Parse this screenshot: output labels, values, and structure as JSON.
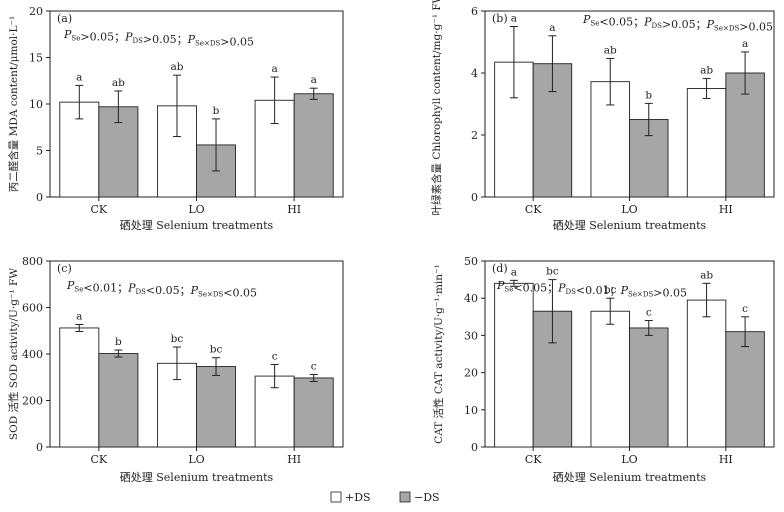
{
  "legend": {
    "items": [
      {
        "label": "+DS",
        "color": "#ffffff"
      },
      {
        "label": "−DS",
        "color": "#a6a6a6"
      }
    ]
  },
  "chart_data": [
    {
      "type": "bar",
      "panel_label": "(a)",
      "stats": "PSe>0.05；PDS>0.05；PSe×DS>0.05",
      "ylabel": "丙二醛含量 MDA content/μmol·L⁻¹",
      "xlabel": "硒处理 Selenium treatments",
      "categories": [
        "CK",
        "LO",
        "HI"
      ],
      "ylim": [
        0,
        20
      ],
      "yticks": [
        0,
        5,
        10,
        15,
        20
      ],
      "series": [
        {
          "name": "+DS",
          "values": [
            10.2,
            9.8,
            10.4
          ],
          "errors": [
            1.8,
            3.3,
            2.5
          ],
          "letters": [
            "a",
            "ab",
            "a"
          ]
        },
        {
          "name": "−DS",
          "values": [
            9.7,
            5.6,
            11.1
          ],
          "errors": [
            1.7,
            2.8,
            0.6
          ],
          "letters": [
            "ab",
            "b",
            "a"
          ]
        }
      ]
    },
    {
      "type": "bar",
      "panel_label": "(b)",
      "stats": "PSe<0.05；PDS>0.05；PSe×DS>0.05",
      "ylabel": "叶绿素含量 Chlorophyll content/mg·g⁻¹ FW",
      "xlabel": "硒处理 Selenium treatments",
      "categories": [
        "CK",
        "LO",
        "HI"
      ],
      "ylim": [
        0,
        6
      ],
      "yticks": [
        0,
        2,
        4,
        6
      ],
      "series": [
        {
          "name": "+DS",
          "values": [
            4.35,
            3.72,
            3.5
          ],
          "errors": [
            1.15,
            0.75,
            0.32
          ],
          "letters": [
            "a",
            "ab",
            "ab"
          ]
        },
        {
          "name": "−DS",
          "values": [
            4.3,
            2.5,
            4.0
          ],
          "errors": [
            0.9,
            0.52,
            0.68
          ],
          "letters": [
            "a",
            "b",
            "a"
          ]
        }
      ]
    },
    {
      "type": "bar",
      "panel_label": "(c)",
      "stats": "PSe<0.01；PDS<0.05；PSe×DS<0.05",
      "ylabel": "SOD 活性 SOD activity/U·g⁻¹ FW",
      "xlabel": "硒处理 Selenium treatments",
      "categories": [
        "CK",
        "LO",
        "HI"
      ],
      "ylim": [
        0,
        800
      ],
      "yticks": [
        0,
        200,
        400,
        600,
        800
      ],
      "series": [
        {
          "name": "+DS",
          "values": [
            512,
            360,
            305
          ],
          "errors": [
            15,
            70,
            50
          ],
          "letters": [
            "a",
            "bc",
            "c"
          ]
        },
        {
          "name": "−DS",
          "values": [
            402,
            346,
            297
          ],
          "errors": [
            15,
            38,
            15
          ],
          "letters": [
            "b",
            "bc",
            "c"
          ]
        }
      ]
    },
    {
      "type": "bar",
      "panel_label": "(d)",
      "stats": "PSe<0.05；PDS<0.01；PSe×DS>0.05",
      "ylabel": "CAT 活性 CAT activity/U·g⁻¹·min⁻¹",
      "xlabel": "硒处理 Selenium treatments",
      "categories": [
        "CK",
        "LO",
        "HI"
      ],
      "ylim": [
        0,
        50
      ],
      "yticks": [
        0,
        10,
        20,
        30,
        40,
        50
      ],
      "series": [
        {
          "name": "+DS",
          "values": [
            44,
            36.5,
            39.5
          ],
          "errors": [
            0.8,
            3.5,
            4.5
          ],
          "letters": [
            "a",
            "bc",
            "ab"
          ]
        },
        {
          "name": "−DS",
          "values": [
            36.5,
            32,
            31
          ],
          "errors": [
            8.5,
            2.0,
            4.0
          ],
          "letters": [
            "bc",
            "c",
            "c"
          ]
        }
      ]
    }
  ]
}
